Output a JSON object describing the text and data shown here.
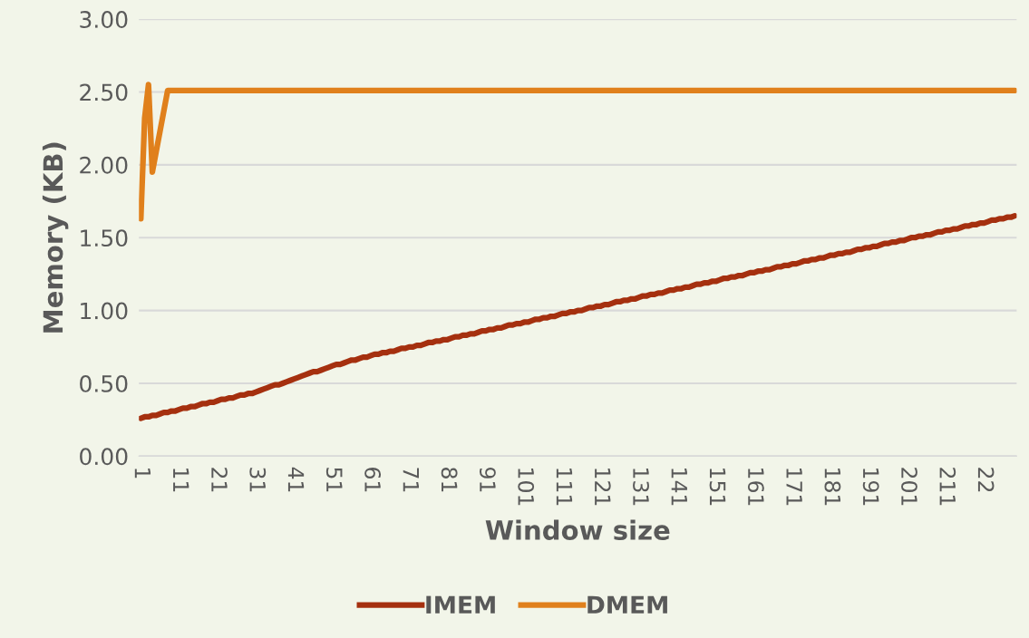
{
  "chart_data": {
    "type": "line",
    "xlabel": "Window size",
    "ylabel": "Memory (KB)",
    "categories": [
      "1",
      null,
      null,
      null,
      null,
      null,
      null,
      null,
      null,
      null,
      "11",
      null,
      null,
      null,
      null,
      null,
      null,
      null,
      null,
      null,
      "21",
      null,
      null,
      null,
      null,
      null,
      null,
      null,
      null,
      null,
      "31",
      null,
      null,
      null,
      null,
      null,
      null,
      null,
      null,
      null,
      "41",
      null,
      null,
      null,
      null,
      null,
      null,
      null,
      null,
      null,
      "51",
      null,
      null,
      null,
      null,
      null,
      null,
      null,
      null,
      null,
      "61",
      null,
      null,
      null,
      null,
      null,
      null,
      null,
      null,
      null,
      "71",
      null,
      null,
      null,
      null,
      null,
      null,
      null,
      null,
      null,
      "81",
      null,
      null,
      null,
      null,
      null,
      null,
      null,
      null,
      null,
      "91",
      null,
      null,
      null,
      null,
      null,
      null,
      null,
      null,
      null,
      "101",
      null,
      null,
      null,
      null,
      null,
      null,
      null,
      null,
      null,
      "111",
      null,
      null,
      null,
      null,
      null,
      null,
      null,
      null,
      null,
      "121",
      null,
      null,
      null,
      null,
      null,
      null,
      null,
      null,
      null,
      "131",
      null,
      null,
      null,
      null,
      null,
      null,
      null,
      null,
      null,
      "141",
      null,
      null,
      null,
      null,
      null,
      null,
      null,
      null,
      null,
      "151",
      null,
      null,
      null,
      null,
      null,
      null,
      null,
      null,
      null,
      "161",
      null,
      null,
      null,
      null,
      null,
      null,
      null,
      null,
      null,
      "171",
      null,
      null,
      null,
      null,
      null,
      null,
      null,
      null,
      null,
      "181",
      null,
      null,
      null,
      null,
      null,
      null,
      null,
      null,
      null,
      "191",
      null,
      null,
      null,
      null,
      null,
      null,
      null,
      null,
      null,
      "201",
      null,
      null,
      null,
      null,
      null,
      null,
      null,
      null,
      null,
      "211",
      null,
      null,
      null,
      null,
      null,
      null,
      null,
      null,
      null,
      "22",
      null,
      null,
      null,
      null,
      null,
      null,
      null,
      null
    ],
    "series": [
      {
        "name": "IMEM",
        "color": "#a5300f",
        "values": [
          0.26,
          0.27,
          0.27,
          0.28,
          0.28,
          0.29,
          0.3,
          0.3,
          0.31,
          0.31,
          0.32,
          0.33,
          0.33,
          0.34,
          0.34,
          0.35,
          0.36,
          0.36,
          0.37,
          0.37,
          0.38,
          0.39,
          0.39,
          0.4,
          0.4,
          0.41,
          0.42,
          0.42,
          0.43,
          0.43,
          0.44,
          0.45,
          0.46,
          0.47,
          0.48,
          0.49,
          0.49,
          0.5,
          0.51,
          0.52,
          0.53,
          0.54,
          0.55,
          0.56,
          0.57,
          0.58,
          0.58,
          0.59,
          0.6,
          0.61,
          0.62,
          0.63,
          0.63,
          0.64,
          0.65,
          0.66,
          0.66,
          0.67,
          0.68,
          0.68,
          0.69,
          0.7,
          0.7,
          0.71,
          0.71,
          0.72,
          0.72,
          0.73,
          0.74,
          0.74,
          0.75,
          0.75,
          0.76,
          0.76,
          0.77,
          0.78,
          0.78,
          0.79,
          0.79,
          0.8,
          0.8,
          0.81,
          0.82,
          0.82,
          0.83,
          0.83,
          0.84,
          0.84,
          0.85,
          0.86,
          0.86,
          0.87,
          0.87,
          0.88,
          0.88,
          0.89,
          0.9,
          0.9,
          0.91,
          0.91,
          0.92,
          0.92,
          0.93,
          0.94,
          0.94,
          0.95,
          0.95,
          0.96,
          0.96,
          0.97,
          0.98,
          0.98,
          0.99,
          0.99,
          1.0,
          1.0,
          1.01,
          1.02,
          1.02,
          1.03,
          1.03,
          1.04,
          1.04,
          1.05,
          1.06,
          1.06,
          1.07,
          1.07,
          1.08,
          1.08,
          1.09,
          1.1,
          1.1,
          1.11,
          1.11,
          1.12,
          1.12,
          1.13,
          1.14,
          1.14,
          1.15,
          1.15,
          1.16,
          1.16,
          1.17,
          1.18,
          1.18,
          1.19,
          1.19,
          1.2,
          1.2,
          1.21,
          1.22,
          1.22,
          1.23,
          1.23,
          1.24,
          1.24,
          1.25,
          1.26,
          1.26,
          1.27,
          1.27,
          1.28,
          1.28,
          1.29,
          1.3,
          1.3,
          1.31,
          1.31,
          1.32,
          1.32,
          1.33,
          1.34,
          1.34,
          1.35,
          1.35,
          1.36,
          1.36,
          1.37,
          1.38,
          1.38,
          1.39,
          1.39,
          1.4,
          1.4,
          1.41,
          1.42,
          1.42,
          1.43,
          1.43,
          1.44,
          1.44,
          1.45,
          1.46,
          1.46,
          1.47,
          1.47,
          1.48,
          1.48,
          1.49,
          1.5,
          1.5,
          1.51,
          1.51,
          1.52,
          1.52,
          1.53,
          1.54,
          1.54,
          1.55,
          1.55,
          1.56,
          1.56,
          1.57,
          1.58,
          1.58,
          1.59,
          1.59,
          1.6,
          1.6,
          1.61,
          1.62,
          1.62,
          1.63,
          1.63,
          1.64,
          1.64,
          1.65
        ]
      },
      {
        "name": "DMEM",
        "color": "#e0801c",
        "values": [
          1.63,
          2.32,
          2.55,
          1.95,
          2.09,
          2.23,
          2.37,
          2.51,
          2.51,
          2.51,
          2.51,
          2.51,
          2.51,
          2.51,
          2.51,
          2.51,
          2.51,
          2.51,
          2.51,
          2.51,
          2.51,
          2.51,
          2.51,
          2.51,
          2.51,
          2.51,
          2.51,
          2.51,
          2.51,
          2.51,
          2.51,
          2.51,
          2.51,
          2.51,
          2.51,
          2.51,
          2.51,
          2.51,
          2.51,
          2.51,
          2.51,
          2.51,
          2.51,
          2.51,
          2.51,
          2.51,
          2.51,
          2.51,
          2.51,
          2.51,
          2.51,
          2.51,
          2.51,
          2.51,
          2.51,
          2.51,
          2.51,
          2.51,
          2.51,
          2.51,
          2.51,
          2.51,
          2.51,
          2.51,
          2.51,
          2.51,
          2.51,
          2.51,
          2.51,
          2.51,
          2.51,
          2.51,
          2.51,
          2.51,
          2.51,
          2.51,
          2.51,
          2.51,
          2.51,
          2.51,
          2.51,
          2.51,
          2.51,
          2.51,
          2.51,
          2.51,
          2.51,
          2.51,
          2.51,
          2.51,
          2.51,
          2.51,
          2.51,
          2.51,
          2.51,
          2.51,
          2.51,
          2.51,
          2.51,
          2.51,
          2.51,
          2.51,
          2.51,
          2.51,
          2.51,
          2.51,
          2.51,
          2.51,
          2.51,
          2.51,
          2.51,
          2.51,
          2.51,
          2.51,
          2.51,
          2.51,
          2.51,
          2.51,
          2.51,
          2.51,
          2.51,
          2.51,
          2.51,
          2.51,
          2.51,
          2.51,
          2.51,
          2.51,
          2.51,
          2.51,
          2.51,
          2.51,
          2.51,
          2.51,
          2.51,
          2.51,
          2.51,
          2.51,
          2.51,
          2.51,
          2.51,
          2.51,
          2.51,
          2.51,
          2.51,
          2.51,
          2.51,
          2.51,
          2.51,
          2.51,
          2.51,
          2.51,
          2.51,
          2.51,
          2.51,
          2.51,
          2.51,
          2.51,
          2.51,
          2.51,
          2.51,
          2.51,
          2.51,
          2.51,
          2.51,
          2.51,
          2.51,
          2.51,
          2.51,
          2.51,
          2.51,
          2.51,
          2.51,
          2.51,
          2.51,
          2.51,
          2.51,
          2.51,
          2.51,
          2.51,
          2.51,
          2.51,
          2.51,
          2.51,
          2.51,
          2.51,
          2.51,
          2.51,
          2.51,
          2.51,
          2.51,
          2.51,
          2.51,
          2.51,
          2.51,
          2.51,
          2.51,
          2.51,
          2.51,
          2.51,
          2.51,
          2.51,
          2.51,
          2.51,
          2.51,
          2.51,
          2.51,
          2.51,
          2.51,
          2.51,
          2.51,
          2.51,
          2.51,
          2.51,
          2.51,
          2.51,
          2.51,
          2.51,
          2.51,
          2.51,
          2.51,
          2.51,
          2.51,
          2.51,
          2.51,
          2.51,
          2.51,
          2.51,
          2.51
        ]
      }
    ],
    "ylim": [
      0,
      3
    ],
    "yticks": [
      {
        "value": 0,
        "label": "0.00"
      },
      {
        "value": 0.5,
        "label": "0.50"
      },
      {
        "value": 1,
        "label": "1.00"
      },
      {
        "value": 1.5,
        "label": "1.50"
      },
      {
        "value": 2,
        "label": "2.00"
      },
      {
        "value": 2.5,
        "label": "2.50"
      },
      {
        "value": 3,
        "label": "3.00"
      }
    ],
    "grid": "y",
    "legend": "bottom",
    "marker": "none",
    "line_style": "solid"
  }
}
